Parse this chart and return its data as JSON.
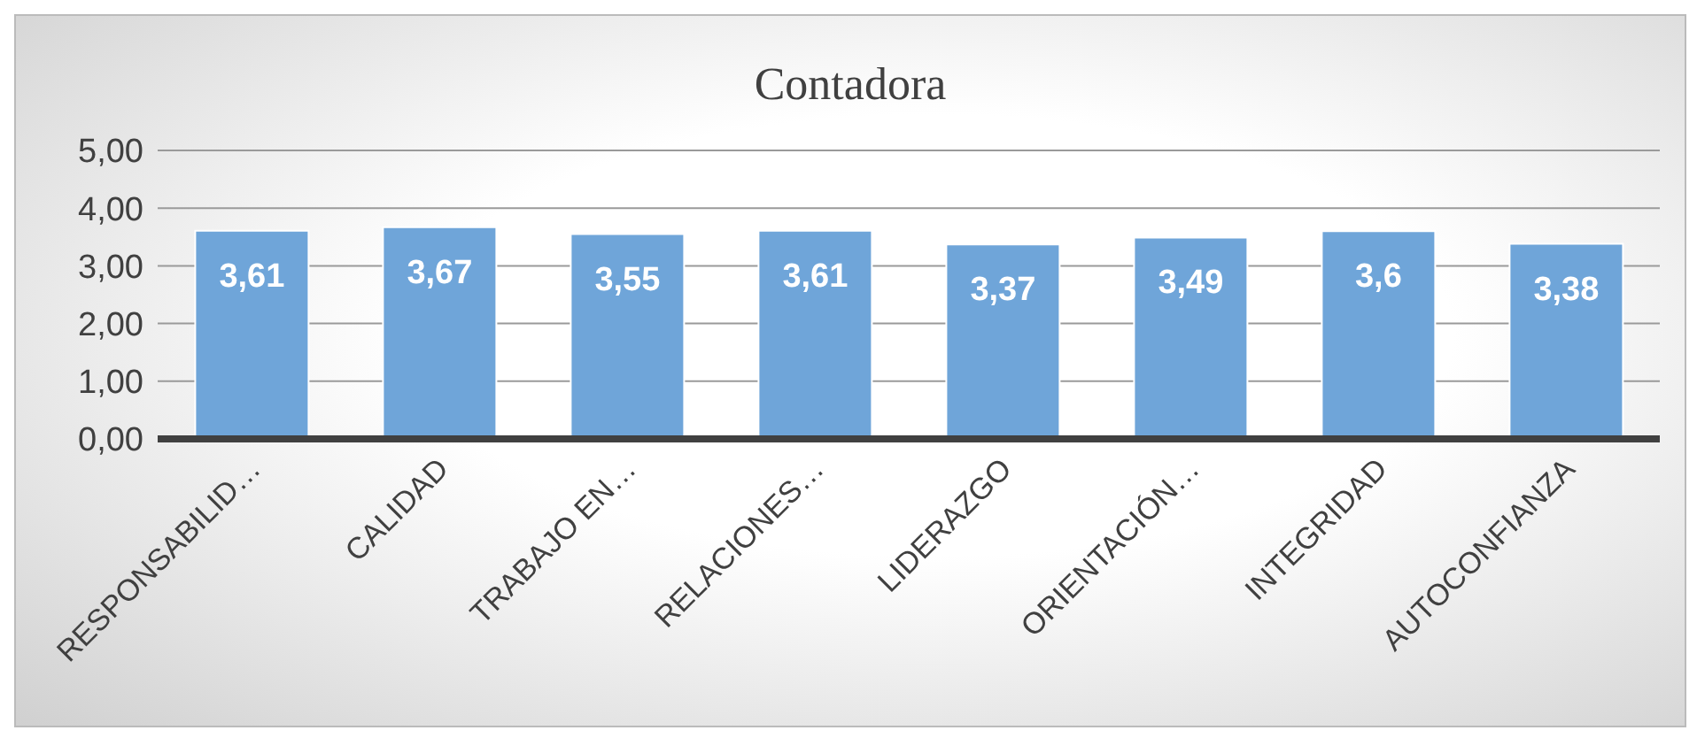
{
  "chart_data": {
    "type": "bar",
    "title": "Contadora",
    "categories": [
      "RESPONSABILID…",
      "CALIDAD",
      "TRABAJO EN…",
      "RELACIONES…",
      "LIDERAZGO",
      "ORIENTACIÓN…",
      "INTEGRIDAD",
      "AUTOCONFIANZA"
    ],
    "values": [
      3.61,
      3.67,
      3.55,
      3.61,
      3.37,
      3.49,
      3.6,
      3.38
    ],
    "value_labels": [
      "3,61",
      "3,67",
      "3,55",
      "3,61",
      "3,37",
      "3,49",
      "3,6",
      "3,38"
    ],
    "color": "#6fa5d9",
    "ylim": [
      0,
      5
    ],
    "yticks": [
      {
        "value": 0,
        "label": "0,00"
      },
      {
        "value": 1,
        "label": "1,00"
      },
      {
        "value": 2,
        "label": "2,00"
      },
      {
        "value": 3,
        "label": "3,00"
      },
      {
        "value": 4,
        "label": "4,00"
      },
      {
        "value": 5,
        "label": "5,00"
      }
    ],
    "grid": "y",
    "legend": false
  }
}
